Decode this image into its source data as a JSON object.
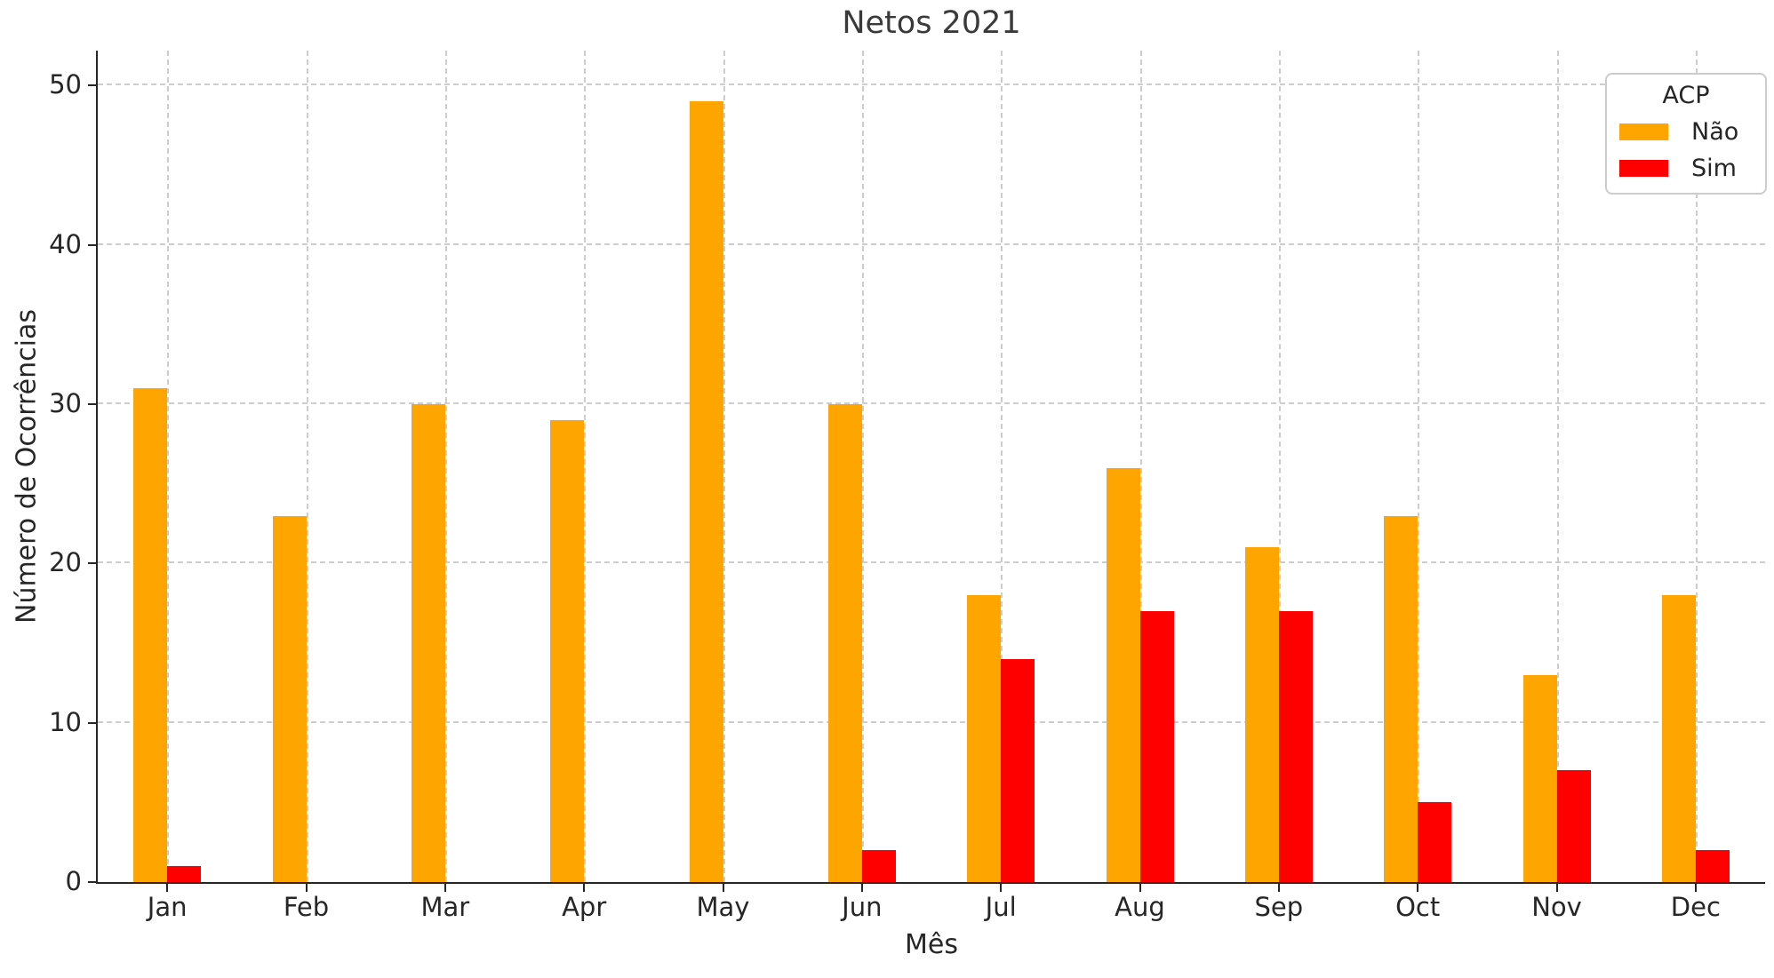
{
  "chart_data": {
    "type": "bar",
    "title": "Netos 2021",
    "xlabel": "Mês",
    "ylabel": "Número de Ocorrências",
    "categories": [
      "Jan",
      "Feb",
      "Mar",
      "Apr",
      "May",
      "Jun",
      "Jul",
      "Aug",
      "Sep",
      "Oct",
      "Nov",
      "Dec"
    ],
    "series": [
      {
        "name": "Não",
        "color": "#FFA500",
        "values": [
          31,
          23,
          30,
          29,
          49,
          30,
          18,
          26,
          21,
          23,
          13,
          18
        ]
      },
      {
        "name": "Sim",
        "color": "#FF0000",
        "values": [
          1,
          0,
          0,
          0,
          0,
          2,
          14,
          17,
          17,
          5,
          7,
          2
        ]
      }
    ],
    "legend": {
      "title": "ACP",
      "position": "upper right"
    },
    "ylim": [
      0,
      52
    ],
    "yticks": [
      0,
      10,
      20,
      30,
      40,
      50
    ],
    "grid": {
      "show": true,
      "style": "dashed",
      "axes": "both"
    },
    "colors": {
      "gridline": "#CDCDCD",
      "axis": "#262626",
      "background": "#FFFFFF"
    }
  }
}
